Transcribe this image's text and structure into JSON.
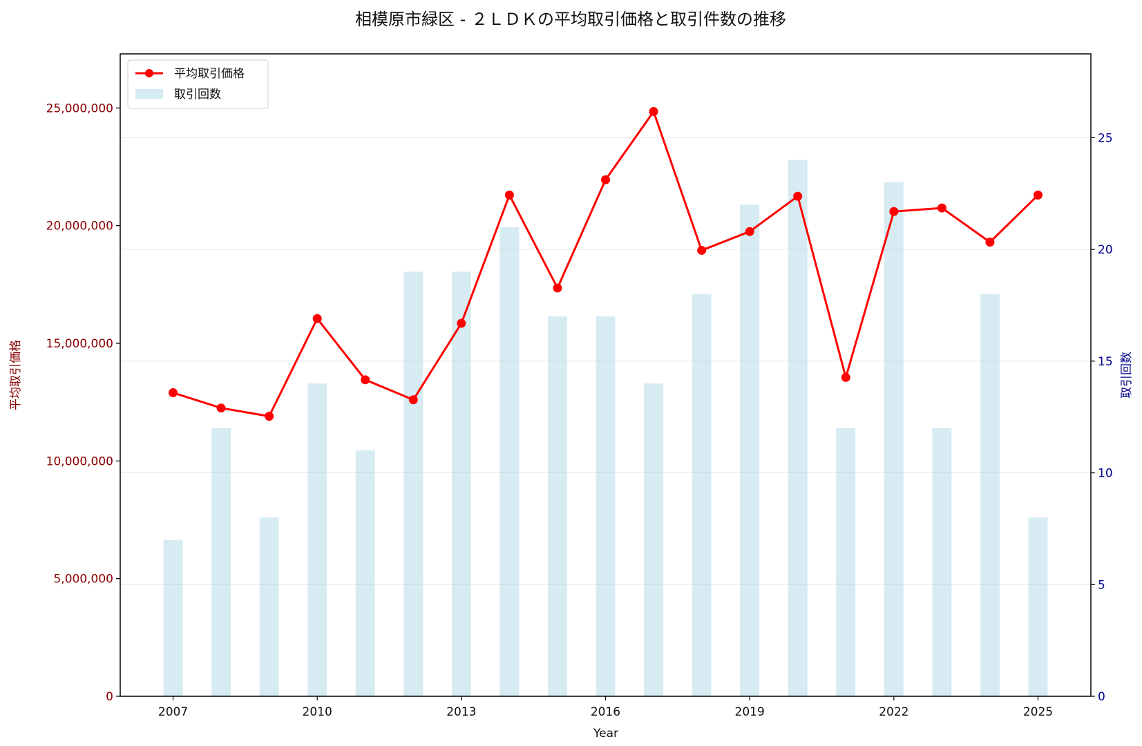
{
  "chart_data": {
    "type": "bar+line",
    "title": "相模原市緑区 - ２ＬＤＫの平均取引価格と取引件数の推移",
    "xlabel": "Year",
    "ylabel_left": "平均取引価格",
    "ylabel_right": "取引回数",
    "x": [
      2007,
      2008,
      2009,
      2010,
      2011,
      2012,
      2013,
      2014,
      2015,
      2016,
      2017,
      2018,
      2019,
      2020,
      2021,
      2022,
      2023,
      2024,
      2025
    ],
    "x_ticks": [
      "2007",
      "2010",
      "2013",
      "2016",
      "2019",
      "2022",
      "2025"
    ],
    "y_left_ticks": [
      "0",
      "5,000,000",
      "10,000,000",
      "15,000,000",
      "20,000,000",
      "25,000,000"
    ],
    "y_right_ticks": [
      "0",
      "5",
      "10",
      "15",
      "20",
      "25"
    ],
    "ylim_left": [
      0,
      27300000
    ],
    "ylim_right": [
      0,
      28.75
    ],
    "xlim": [
      2005.9,
      2026.1
    ],
    "series": [
      {
        "name": "平均取引価格",
        "kind": "line",
        "axis": "left",
        "color": "#ff0000",
        "values": [
          12900000,
          12250000,
          11900000,
          16050000,
          13450000,
          12600000,
          15850000,
          21300000,
          17350000,
          21950000,
          24850000,
          18950000,
          19750000,
          21250000,
          13550000,
          20600000,
          20750000,
          19300000,
          21300000
        ]
      },
      {
        "name": "取引回数",
        "kind": "bar",
        "axis": "right",
        "color": "#add8e6",
        "values": [
          7,
          12,
          8,
          14,
          11,
          19,
          19,
          21,
          17,
          17,
          14,
          18,
          22,
          24,
          12,
          23,
          12,
          18,
          8
        ]
      }
    ],
    "left_axis_color": "#8b0000",
    "right_axis_color": "#00008b",
    "grid": "horizontal (right axis)",
    "legend_position": "top-left"
  }
}
